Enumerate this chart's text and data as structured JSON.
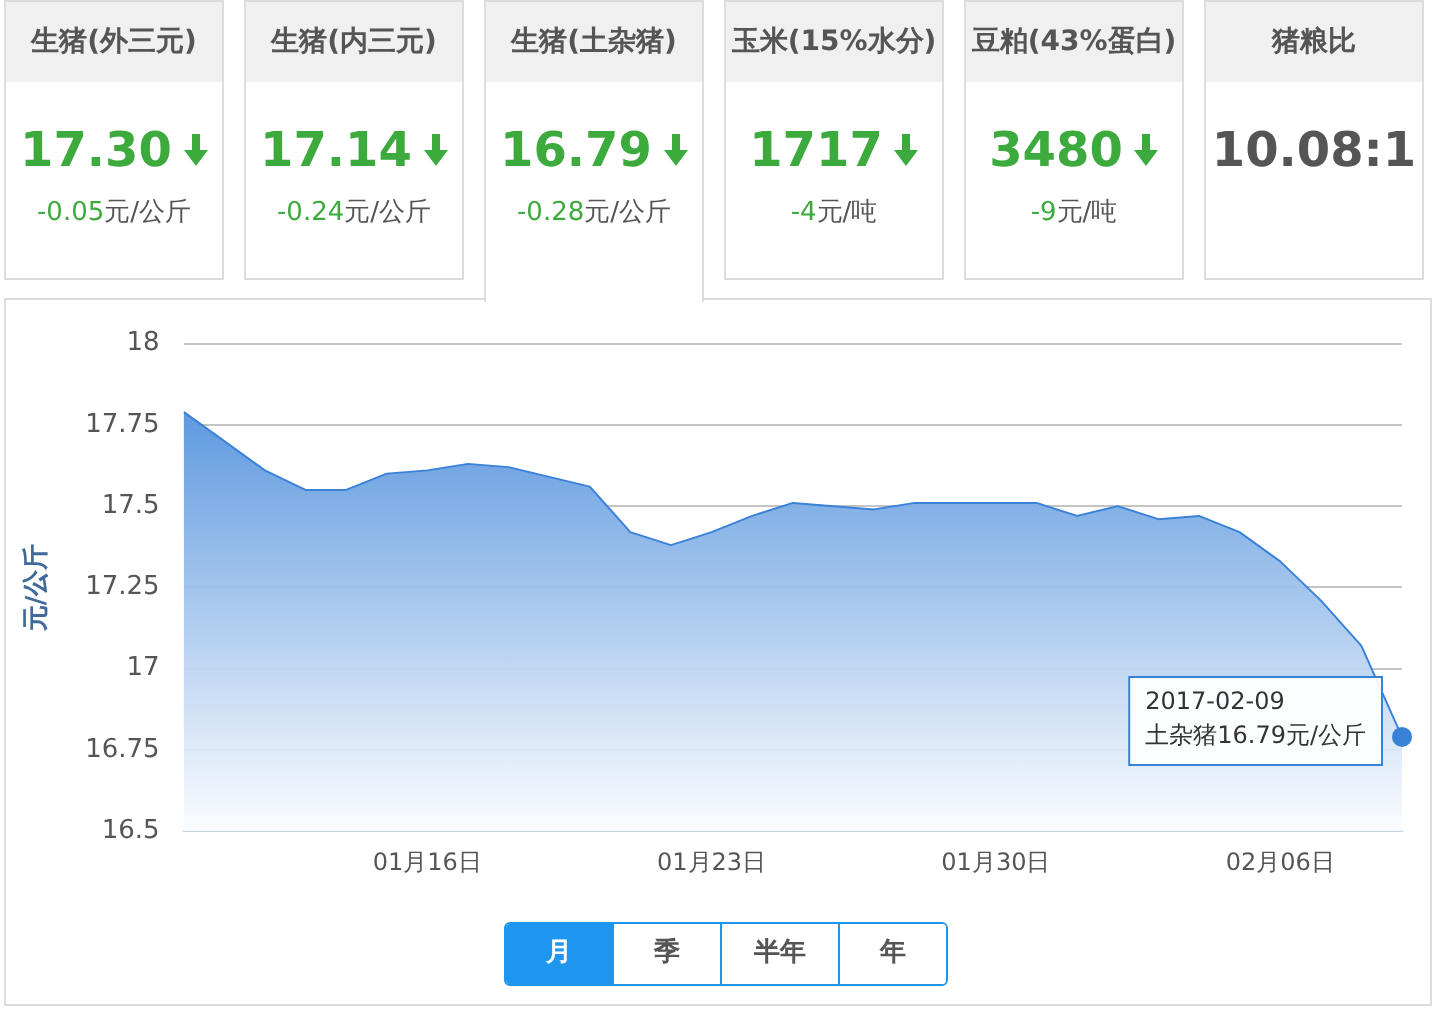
{
  "chart_data": [
    {
      "type": "other",
      "categories": [
        "生猪(外三元)",
        "生猪(内三元)",
        "生猪(土杂猪)",
        "玉米(15%水分)",
        "豆粕(43%蛋白)",
        "猪粮比"
      ],
      "value_labels": [
        "17.30",
        "17.14",
        "16.79",
        "1717",
        "3480",
        "10.08:1"
      ],
      "annotations": [
        "-0.05元/公斤",
        "-0.24元/公斤",
        "-0.28元/公斤",
        "-4元/吨",
        "-9元/吨"
      ]
    },
    {
      "type": "area",
      "ylabel": "元/公斤",
      "color": "#3a82d8",
      "x": [
        "2017-01-10",
        "2017-01-11",
        "2017-01-12",
        "2017-01-13",
        "2017-01-14",
        "2017-01-15",
        "2017-01-16",
        "2017-01-17",
        "2017-01-18",
        "2017-01-19",
        "2017-01-20",
        "2017-01-21",
        "2017-01-22",
        "2017-01-23",
        "2017-01-24",
        "2017-01-25",
        "2017-01-26",
        "2017-01-27",
        "2017-01-28",
        "2017-01-29",
        "2017-01-30",
        "2017-01-31",
        "2017-02-01",
        "2017-02-02",
        "2017-02-03",
        "2017-02-04",
        "2017-02-05",
        "2017-02-06",
        "2017-02-07",
        "2017-02-08",
        "2017-02-09"
      ],
      "values": [
        17.79,
        17.7,
        17.61,
        17.55,
        17.55,
        17.6,
        17.61,
        17.63,
        17.62,
        17.59,
        17.56,
        17.42,
        17.38,
        17.42,
        17.47,
        17.51,
        17.5,
        17.49,
        17.51,
        17.51,
        17.51,
        17.51,
        17.47,
        17.5,
        17.46,
        17.47,
        17.42,
        17.33,
        17.21,
        17.07,
        16.79
      ],
      "xlim": [
        "2017-01-10",
        "2017-02-09"
      ],
      "xticks": [
        {
          "value": "2017-01-16",
          "label": "01月16日"
        },
        {
          "value": "2017-01-23",
          "label": "01月23日"
        },
        {
          "value": "2017-01-30",
          "label": "01月30日"
        },
        {
          "value": "2017-02-06",
          "label": "02月06日"
        }
      ],
      "ylim": [
        16.5,
        18
      ],
      "yticks": [
        16.5,
        16.75,
        17,
        17.25,
        17.5,
        17.75,
        18
      ],
      "grid": "y",
      "legend": false,
      "annotations": [
        {
          "text": "2017-02-09\n土杂猪16.79元/公斤",
          "x": "2017-02-09",
          "y": 16.79
        },
        "月",
        "季",
        "半年",
        "年"
      ]
    }
  ]
}
